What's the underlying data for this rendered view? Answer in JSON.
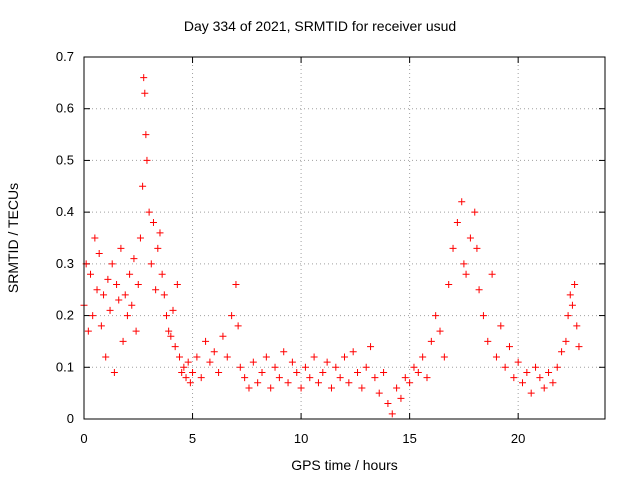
{
  "chart_data": {
    "type": "scatter",
    "title": "Day 334 of 2021, SRMTID for receiver usud",
    "xlabel": "GPS time / hours",
    "ylabel": "SRMTID / TECUs",
    "xlim": [
      0,
      24
    ],
    "ylim": [
      0,
      0.7
    ],
    "xticks": [
      "0",
      "5",
      "10",
      "15",
      "20"
    ],
    "yticks": [
      "0",
      "0.1",
      "0.2",
      "0.3",
      "0.4",
      "0.5",
      "0.6",
      "0.7"
    ],
    "grid": true,
    "marker": "+",
    "color": "#ff0000",
    "series": [
      {
        "name": "SRMTID",
        "x": [
          0.0,
          0.1,
          0.2,
          0.3,
          0.4,
          0.5,
          0.6,
          0.7,
          0.8,
          0.9,
          1.0,
          1.1,
          1.2,
          1.3,
          1.4,
          1.5,
          1.6,
          1.7,
          1.8,
          1.9,
          2.0,
          2.1,
          2.2,
          2.3,
          2.4,
          2.5,
          2.6,
          2.7,
          2.75,
          2.8,
          2.85,
          2.9,
          3.0,
          3.1,
          3.2,
          3.3,
          3.4,
          3.5,
          3.6,
          3.7,
          3.8,
          3.9,
          4.0,
          4.1,
          4.2,
          4.3,
          4.4,
          4.5,
          4.6,
          4.7,
          4.8,
          4.9,
          5.0,
          5.2,
          5.4,
          5.6,
          5.8,
          6.0,
          6.2,
          6.4,
          6.6,
          6.8,
          7.0,
          7.1,
          7.2,
          7.4,
          7.6,
          7.8,
          8.0,
          8.2,
          8.4,
          8.6,
          8.8,
          9.0,
          9.2,
          9.4,
          9.6,
          9.8,
          10.0,
          10.2,
          10.4,
          10.6,
          10.8,
          11.0,
          11.2,
          11.4,
          11.6,
          11.8,
          12.0,
          12.2,
          12.4,
          12.6,
          12.8,
          13.0,
          13.2,
          13.4,
          13.6,
          13.8,
          14.0,
          14.2,
          14.4,
          14.6,
          14.8,
          15.0,
          15.2,
          15.4,
          15.6,
          15.8,
          16.0,
          16.2,
          16.4,
          16.6,
          16.8,
          17.0,
          17.2,
          17.4,
          17.5,
          17.6,
          17.8,
          18.0,
          18.1,
          18.2,
          18.4,
          18.6,
          18.8,
          19.0,
          19.2,
          19.4,
          19.6,
          19.8,
          20.0,
          20.2,
          20.4,
          20.6,
          20.8,
          21.0,
          21.2,
          21.4,
          21.6,
          21.8,
          22.0,
          22.2,
          22.3,
          22.4,
          22.5,
          22.6,
          22.7,
          22.8
        ],
        "y": [
          0.22,
          0.3,
          0.17,
          0.28,
          0.2,
          0.35,
          0.25,
          0.32,
          0.18,
          0.24,
          0.12,
          0.27,
          0.21,
          0.3,
          0.09,
          0.26,
          0.23,
          0.33,
          0.15,
          0.24,
          0.2,
          0.28,
          0.22,
          0.31,
          0.17,
          0.26,
          0.35,
          0.45,
          0.66,
          0.63,
          0.55,
          0.5,
          0.4,
          0.3,
          0.38,
          0.25,
          0.33,
          0.36,
          0.28,
          0.24,
          0.2,
          0.17,
          0.16,
          0.21,
          0.14,
          0.26,
          0.12,
          0.09,
          0.1,
          0.08,
          0.11,
          0.07,
          0.09,
          0.12,
          0.08,
          0.15,
          0.11,
          0.13,
          0.09,
          0.16,
          0.12,
          0.2,
          0.26,
          0.18,
          0.1,
          0.08,
          0.06,
          0.11,
          0.07,
          0.09,
          0.12,
          0.06,
          0.1,
          0.08,
          0.13,
          0.07,
          0.11,
          0.09,
          0.06,
          0.1,
          0.08,
          0.12,
          0.07,
          0.09,
          0.11,
          0.06,
          0.1,
          0.08,
          0.12,
          0.07,
          0.13,
          0.09,
          0.06,
          0.1,
          0.14,
          0.08,
          0.05,
          0.09,
          0.03,
          0.01,
          0.06,
          0.04,
          0.08,
          0.07,
          0.1,
          0.09,
          0.12,
          0.08,
          0.15,
          0.2,
          0.17,
          0.12,
          0.26,
          0.33,
          0.38,
          0.42,
          0.3,
          0.28,
          0.35,
          0.4,
          0.33,
          0.25,
          0.2,
          0.15,
          0.28,
          0.12,
          0.18,
          0.1,
          0.14,
          0.08,
          0.11,
          0.07,
          0.09,
          0.05,
          0.1,
          0.08,
          0.06,
          0.09,
          0.07,
          0.1,
          0.13,
          0.15,
          0.2,
          0.24,
          0.22,
          0.26,
          0.18,
          0.14
        ]
      }
    ]
  }
}
